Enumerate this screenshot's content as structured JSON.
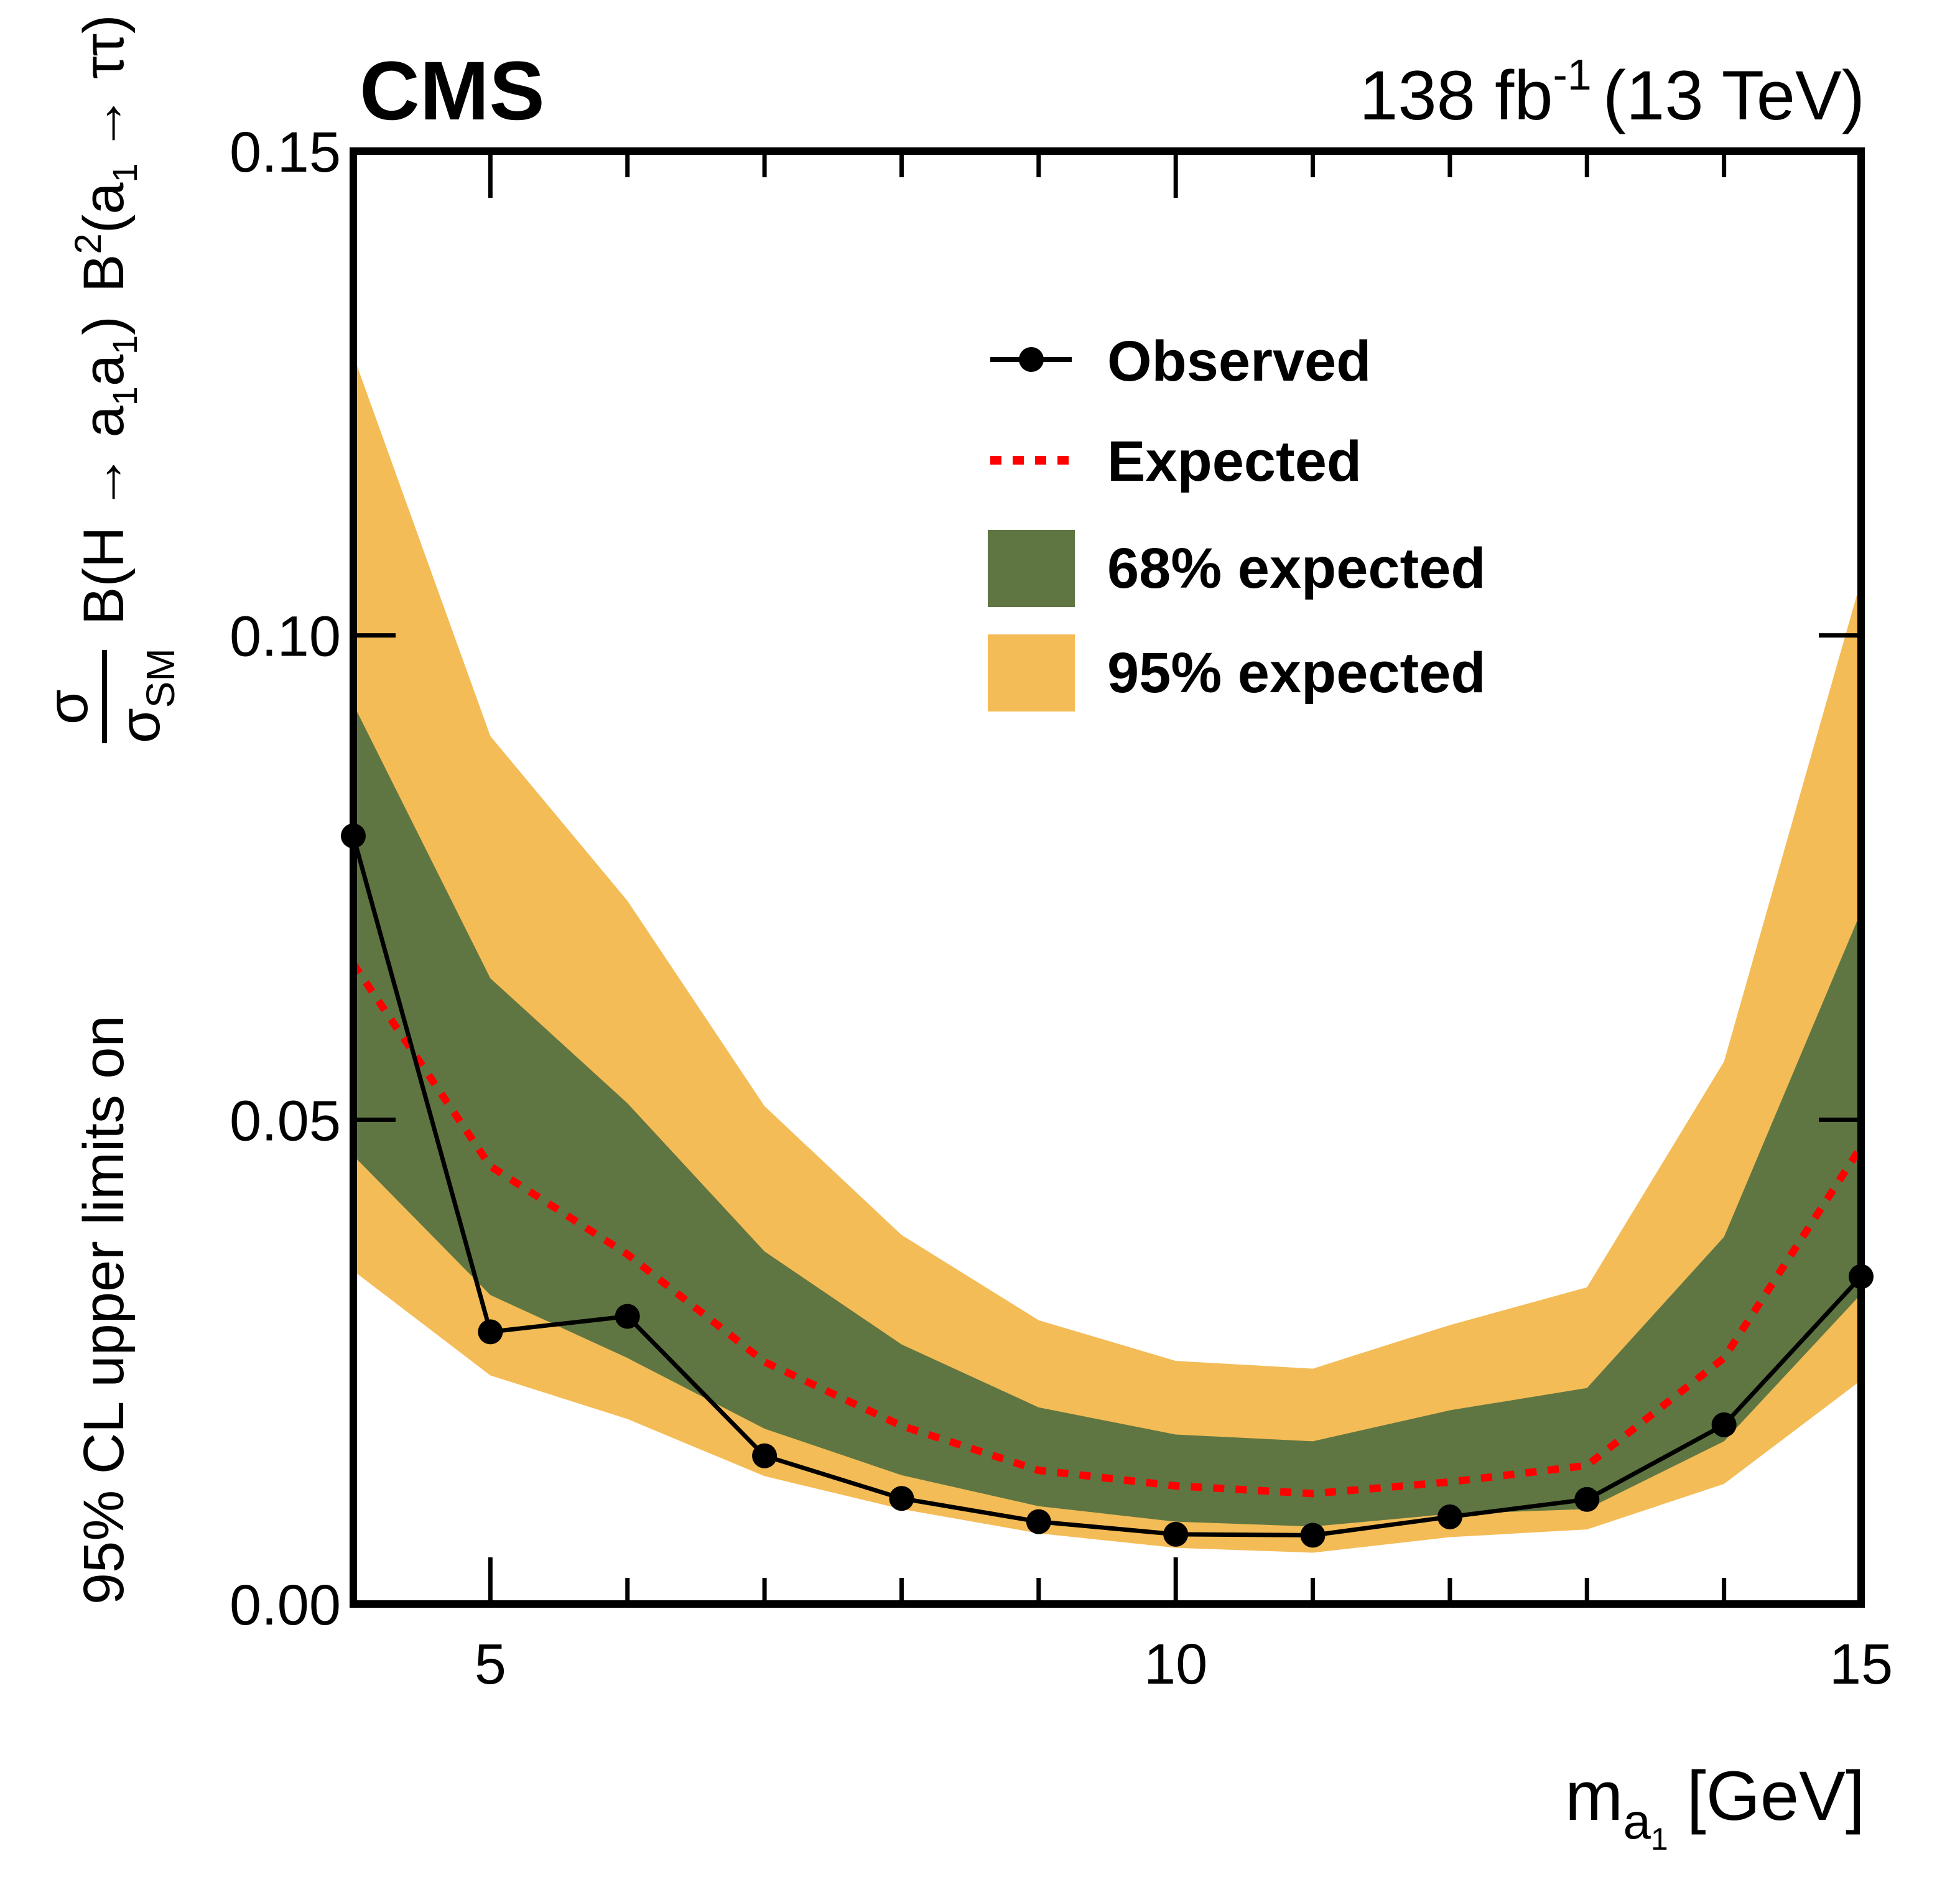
{
  "chart_data": {
    "type": "line",
    "experiment_label": "CMS",
    "lumi_label": "138 fb",
    "lumi_exponent": "-1",
    "energy_label": "(13 TeV)",
    "xlabel": {
      "main": "m",
      "sub": "a",
      "subsub": "1",
      "unit": "[GeV]"
    },
    "ylabel": {
      "prefix": "95% CL upper limits on",
      "frac_num": "σ",
      "frac_den": "σ",
      "frac_den_sub": "SM",
      "part1": "B(H → a",
      "part1_sub1": "1",
      "part1_mid": "a",
      "part1_sub2": "1",
      "part1_end": ")",
      "part2": "B",
      "part2_sup": "2",
      "part2_open": "(a",
      "part2_sub": "1",
      "part2_end": "→ ττ)"
    },
    "xlim": [
      4,
      15
    ],
    "ylim": [
      0,
      0.15
    ],
    "x_ticks": [
      5,
      10,
      15
    ],
    "x_tick_labels": [
      "5",
      "10",
      "15"
    ],
    "x_minor_ticks": [
      5,
      6,
      7,
      8,
      9,
      10,
      11,
      12,
      13,
      14
    ],
    "y_ticks": [
      0.0,
      0.05,
      0.1,
      0.15
    ],
    "y_tick_labels": [
      "0.00",
      "0.05",
      "0.10",
      "0.15"
    ],
    "grid": false,
    "x": [
      4,
      5,
      6,
      7,
      8,
      9,
      10,
      11,
      12,
      13,
      14,
      15
    ],
    "series": [
      {
        "name": "Observed",
        "style": "line-markers",
        "color": "#000000",
        "values": [
          0.0793,
          0.0281,
          0.0297,
          0.0153,
          0.0109,
          0.0085,
          0.0072,
          0.0071,
          0.009,
          0.0108,
          0.0185,
          0.0338
        ]
      },
      {
        "name": "Expected",
        "style": "dotted",
        "color": "#ff0000",
        "values": [
          0.0661,
          0.0452,
          0.0361,
          0.025,
          0.0184,
          0.0138,
          0.0122,
          0.0114,
          0.0126,
          0.0143,
          0.0254,
          0.0472
        ]
      }
    ],
    "bands": [
      {
        "name": "95% expected",
        "color": "#f4bc56",
        "low": [
          0.0344,
          0.0236,
          0.0191,
          0.0132,
          0.0098,
          0.0073,
          0.0058,
          0.0053,
          0.0069,
          0.0077,
          0.0124,
          0.0231
        ],
        "high": [
          0.1289,
          0.0896,
          0.0726,
          0.0514,
          0.0381,
          0.0293,
          0.0251,
          0.0243,
          0.0288,
          0.0327,
          0.056,
          0.1057
        ]
      },
      {
        "name": "68% expected",
        "color": "#607642",
        "low": [
          0.0463,
          0.0319,
          0.0254,
          0.0181,
          0.0133,
          0.0101,
          0.0085,
          0.008,
          0.0093,
          0.0098,
          0.0168,
          0.032
        ],
        "high": [
          0.0929,
          0.0646,
          0.0517,
          0.0364,
          0.0268,
          0.0203,
          0.0175,
          0.0168,
          0.02,
          0.0223,
          0.0379,
          0.0715
        ]
      }
    ],
    "legend": {
      "placement": "top-center",
      "entries": [
        {
          "label": "Observed",
          "kind": "line-marker",
          "color": "#000000"
        },
        {
          "label": "Expected",
          "kind": "dotted",
          "color": "#ff0000"
        },
        {
          "label": "68% expected",
          "kind": "box",
          "color": "#607642"
        },
        {
          "label": "95% expected",
          "kind": "box",
          "color": "#f4bc56"
        }
      ]
    }
  }
}
